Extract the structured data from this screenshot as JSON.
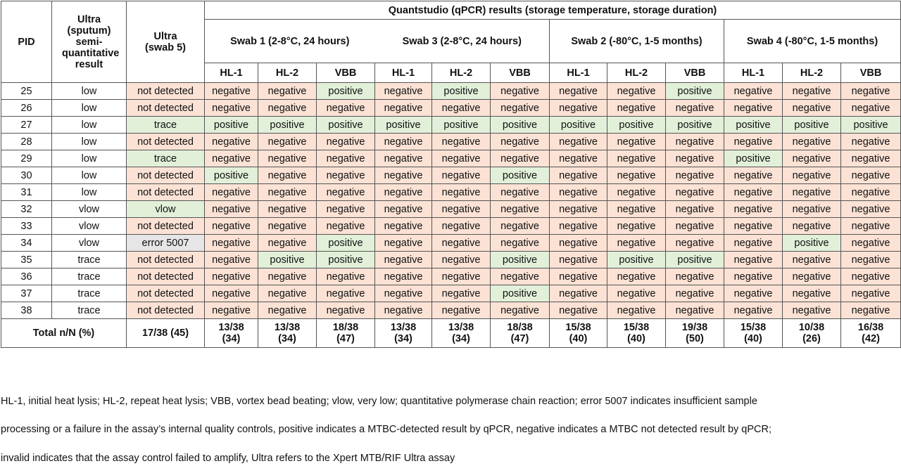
{
  "header": {
    "pid": "PID",
    "ultra_sputum": "Ultra (sputum) semi-quantitative result",
    "ultra_swab5": "Ultra (swab 5)",
    "quantstudio": "Quantstudio (qPCR) results (storage temperature, storage duration)",
    "swabs": [
      "Swab 1 (2-8°C, 24 hours)",
      "Swab 3 (2-8°C, 24 hours)",
      "Swab 2 (-80°C, 1-5 months)",
      "Swab 4 (-80°C, 1-5 months)"
    ],
    "methods": [
      "HL-1",
      "HL-2",
      "VBB"
    ]
  },
  "rows": [
    {
      "pid": "25",
      "sputum": "low",
      "swab5": "not detected",
      "results": [
        "negative",
        "negative",
        "positive",
        "negative",
        "positive",
        "negative",
        "negative",
        "negative",
        "positive",
        "negative",
        "negative",
        "negative"
      ]
    },
    {
      "pid": "26",
      "sputum": "low",
      "swab5": "not detected",
      "results": [
        "negative",
        "negative",
        "negative",
        "negative",
        "negative",
        "negative",
        "negative",
        "negative",
        "negative",
        "negative",
        "negative",
        "negative"
      ]
    },
    {
      "pid": "27",
      "sputum": "low",
      "swab5": "trace",
      "results": [
        "positive",
        "positive",
        "positive",
        "positive",
        "positive",
        "positive",
        "positive",
        "positive",
        "positive",
        "positive",
        "positive",
        "positive"
      ]
    },
    {
      "pid": "28",
      "sputum": "low",
      "swab5": "not detected",
      "results": [
        "negative",
        "negative",
        "negative",
        "negative",
        "negative",
        "negative",
        "negative",
        "negative",
        "negative",
        "negative",
        "negative",
        "negative"
      ]
    },
    {
      "pid": "29",
      "sputum": "low",
      "swab5": "trace",
      "results": [
        "negative",
        "negative",
        "negative",
        "negative",
        "negative",
        "negative",
        "negative",
        "negative",
        "negative",
        "positive",
        "negative",
        "negative"
      ]
    },
    {
      "pid": "30",
      "sputum": "low",
      "swab5": "not detected",
      "results": [
        "positive",
        "negative",
        "negative",
        "negative",
        "negative",
        "positive",
        "negative",
        "negative",
        "negative",
        "negative",
        "negative",
        "negative"
      ]
    },
    {
      "pid": "31",
      "sputum": "low",
      "swab5": "not detected",
      "results": [
        "negative",
        "negative",
        "negative",
        "negative",
        "negative",
        "negative",
        "negative",
        "negative",
        "negative",
        "negative",
        "negative",
        "negative"
      ]
    },
    {
      "pid": "32",
      "sputum": "vlow",
      "swab5": "vlow",
      "results": [
        "negative",
        "negative",
        "negative",
        "negative",
        "negative",
        "negative",
        "negative",
        "negative",
        "negative",
        "negative",
        "negative",
        "negative"
      ]
    },
    {
      "pid": "33",
      "sputum": "vlow",
      "swab5": "not detected",
      "results": [
        "negative",
        "negative",
        "negative",
        "negative",
        "negative",
        "negative",
        "negative",
        "negative",
        "negative",
        "negative",
        "negative",
        "negative"
      ]
    },
    {
      "pid": "34",
      "sputum": "vlow",
      "swab5": "error 5007",
      "results": [
        "negative",
        "negative",
        "positive",
        "negative",
        "negative",
        "negative",
        "negative",
        "negative",
        "negative",
        "negative",
        "positive",
        "negative"
      ]
    },
    {
      "pid": "35",
      "sputum": "trace",
      "swab5": "not detected",
      "results": [
        "negative",
        "positive",
        "positive",
        "negative",
        "negative",
        "positive",
        "negative",
        "positive",
        "positive",
        "negative",
        "negative",
        "negative"
      ]
    },
    {
      "pid": "36",
      "sputum": "trace",
      "swab5": "not detected",
      "results": [
        "negative",
        "negative",
        "negative",
        "negative",
        "negative",
        "negative",
        "negative",
        "negative",
        "negative",
        "negative",
        "negative",
        "negative"
      ]
    },
    {
      "pid": "37",
      "sputum": "trace",
      "swab5": "not detected",
      "results": [
        "negative",
        "negative",
        "negative",
        "negative",
        "negative",
        "positive",
        "negative",
        "negative",
        "negative",
        "negative",
        "negative",
        "negative"
      ]
    },
    {
      "pid": "38",
      "sputum": "trace",
      "swab5": "not detected",
      "results": [
        "negative",
        "negative",
        "negative",
        "negative",
        "negative",
        "negative",
        "negative",
        "negative",
        "negative",
        "negative",
        "negative",
        "negative"
      ]
    }
  ],
  "total": {
    "label": "Total n/N (%)",
    "swab5": "17/38 (45)",
    "values": [
      [
        "13/38",
        "(34)"
      ],
      [
        "13/38",
        "(34)"
      ],
      [
        "18/38",
        "(47)"
      ],
      [
        "13/38",
        "(34)"
      ],
      [
        "13/38",
        "(34)"
      ],
      [
        "18/38",
        "(47)"
      ],
      [
        "15/38",
        "(40)"
      ],
      [
        "15/38",
        "(40)"
      ],
      [
        "19/38",
        "(50)"
      ],
      [
        "15/38",
        "(40)"
      ],
      [
        "10/38",
        "(26)"
      ],
      [
        "16/38",
        "(42)"
      ]
    ]
  },
  "footnote": {
    "line1": "HL-1, initial heat lysis; HL-2, repeat heat lysis; VBB, vortex bead beating; vlow, very low; quantitative polymerase chain reaction; error 5007 indicates insufficient sample",
    "line2": "processing or a failure in the assay’s internal quality controls, positive indicates a MTBC-detected result by qPCR, negative indicates a MTBC not detected result by qPCR;",
    "line3": "invalid indicates that the assay control failed to amplify, Ultra refers to the Xpert MTB/RIF Ultra assay"
  },
  "colors": {
    "positive": "#e2f0d9",
    "negative": "#fbe2d5",
    "error": "#e7e6e6",
    "border": "#555555"
  }
}
